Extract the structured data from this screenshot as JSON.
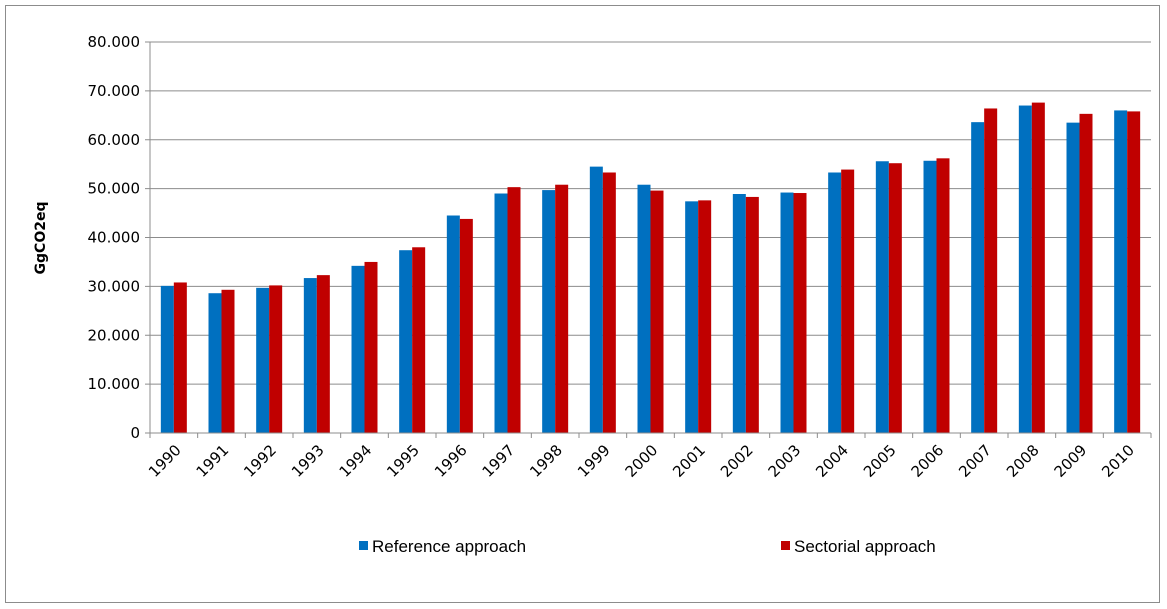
{
  "chart_data": {
    "type": "bar",
    "title": "",
    "xlabel": "",
    "ylabel": "GgCO2eq",
    "ylim": [
      0,
      80000
    ],
    "y_ticks": [
      0,
      10000,
      20000,
      30000,
      40000,
      50000,
      60000,
      70000,
      80000
    ],
    "y_tick_labels": [
      "0",
      "10.000",
      "20.000",
      "30.000",
      "40.000",
      "50.000",
      "60.000",
      "70.000",
      "80.000"
    ],
    "grid": "horizontal",
    "legend_position": "bottom",
    "categories": [
      "1990",
      "1991",
      "1992",
      "1993",
      "1994",
      "1995",
      "1996",
      "1997",
      "1998",
      "1999",
      "2000",
      "2001",
      "2002",
      "2003",
      "2004",
      "2005",
      "2006",
      "2007",
      "2008",
      "2009",
      "2010"
    ],
    "series": [
      {
        "name": "Reference approach",
        "color": "#0070C0",
        "values": [
          30100,
          28600,
          29700,
          31700,
          34200,
          37400,
          44500,
          49000,
          49700,
          54500,
          50800,
          47400,
          48900,
          49200,
          53300,
          55600,
          55700,
          63600,
          67000,
          63500,
          66000
        ]
      },
      {
        "name": "Sectorial approach",
        "color": "#C00000",
        "values": [
          30800,
          29300,
          30200,
          32300,
          35000,
          38000,
          43800,
          50300,
          50800,
          53300,
          49600,
          47600,
          48300,
          49100,
          53900,
          55200,
          56200,
          66400,
          67600,
          65300,
          65800
        ]
      }
    ]
  }
}
